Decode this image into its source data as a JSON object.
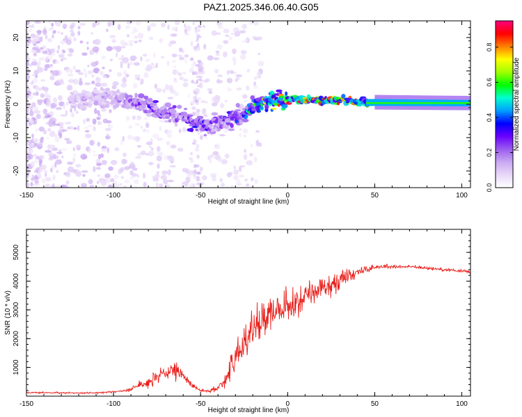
{
  "title": "PAZ1.2025.346.06.40.G05",
  "chart_data": [
    {
      "type": "heatmap",
      "panel": "spectrogram",
      "xlabel": "Height of straight line (km)",
      "ylabel": "Frequency (Hz)",
      "xlim": [
        -150,
        105
      ],
      "ylim": [
        -25,
        25
      ],
      "xticks": [
        -150,
        -100,
        -50,
        0,
        50,
        100
      ],
      "yticks": [
        -20,
        -10,
        0,
        10,
        20
      ],
      "ridge": {
        "description": "dominant frequency track",
        "x": [
          -120,
          -100,
          -90,
          -80,
          -70,
          -60,
          -55,
          -50,
          -45,
          -40,
          -35,
          -30,
          -25,
          -20,
          -15,
          -10,
          -5,
          0,
          10,
          20,
          30,
          40,
          50,
          60,
          80,
          105
        ],
        "freq": [
          1.5,
          2,
          1,
          -1,
          -2.5,
          -3.5,
          -5,
          -6.5,
          -6,
          -6.5,
          -5,
          -4,
          -3,
          -1,
          0.5,
          1.3,
          1.5,
          1.5,
          1.3,
          1.2,
          1.2,
          1,
          0.6,
          0.4,
          0.3,
          0.3
        ],
        "amplitude": [
          0.15,
          0.2,
          0.25,
          0.3,
          0.3,
          0.3,
          0.35,
          0.35,
          0.3,
          0.3,
          0.35,
          0.4,
          0.4,
          0.6,
          0.7,
          0.8,
          0.85,
          0.9,
          0.85,
          0.8,
          0.85,
          0.8,
          0.6,
          0.5,
          0.45,
          0.45
        ]
      },
      "colorbar": {
        "label": "Normalized spectral amplitude",
        "ticks": [
          0.0,
          0.2,
          0.4,
          0.6,
          0.8
        ],
        "range": [
          0,
          0.95
        ],
        "colors": [
          "#ffffff",
          "#e8d8f8",
          "#c9a8f2",
          "#9b5cef",
          "#6a00ff",
          "#0000ff",
          "#00a0ff",
          "#00ffd0",
          "#00ff00",
          "#a0ff00",
          "#ffff00",
          "#ff8000",
          "#ff0000",
          "#ff0080"
        ]
      }
    },
    {
      "type": "line",
      "panel": "snr",
      "xlabel": "Height of straight line (km)",
      "ylabel": "SNR (10 * v/v)",
      "xlim": [
        -150,
        105
      ],
      "ylim": [
        0,
        5800
      ],
      "xticks": [
        -150,
        -100,
        -50,
        0,
        50,
        100
      ],
      "yticks": [
        1000,
        2000,
        3000,
        4000,
        5000
      ],
      "series": [
        {
          "name": "SNR",
          "color": "#e8201c",
          "x": [
            -150,
            -140,
            -130,
            -120,
            -110,
            -100,
            -95,
            -90,
            -85,
            -80,
            -75,
            -70,
            -65,
            -60,
            -55,
            -50,
            -45,
            -40,
            -35,
            -30,
            -25,
            -20,
            -15,
            -10,
            -5,
            0,
            5,
            10,
            15,
            20,
            25,
            30,
            35,
            40,
            45,
            50,
            55,
            60,
            70,
            80,
            90,
            100,
            105
          ],
          "mean": [
            130,
            120,
            115,
            110,
            115,
            150,
            180,
            260,
            380,
            500,
            620,
            800,
            850,
            720,
            380,
            200,
            170,
            300,
            650,
            1300,
            1850,
            2400,
            2700,
            2900,
            3050,
            3100,
            3250,
            3500,
            3650,
            3750,
            3850,
            4050,
            4200,
            4300,
            4400,
            4480,
            4500,
            4500,
            4500,
            4450,
            4400,
            4350,
            4330
          ],
          "noise": [
            40,
            40,
            40,
            40,
            40,
            50,
            60,
            120,
            200,
            300,
            380,
            420,
            450,
            350,
            150,
            60,
            60,
            200,
            500,
            800,
            950,
            1000,
            1000,
            950,
            900,
            850,
            800,
            750,
            700,
            650,
            600,
            500,
            400,
            300,
            200,
            150,
            120,
            90,
            80,
            80,
            80,
            80,
            80
          ]
        }
      ]
    }
  ]
}
